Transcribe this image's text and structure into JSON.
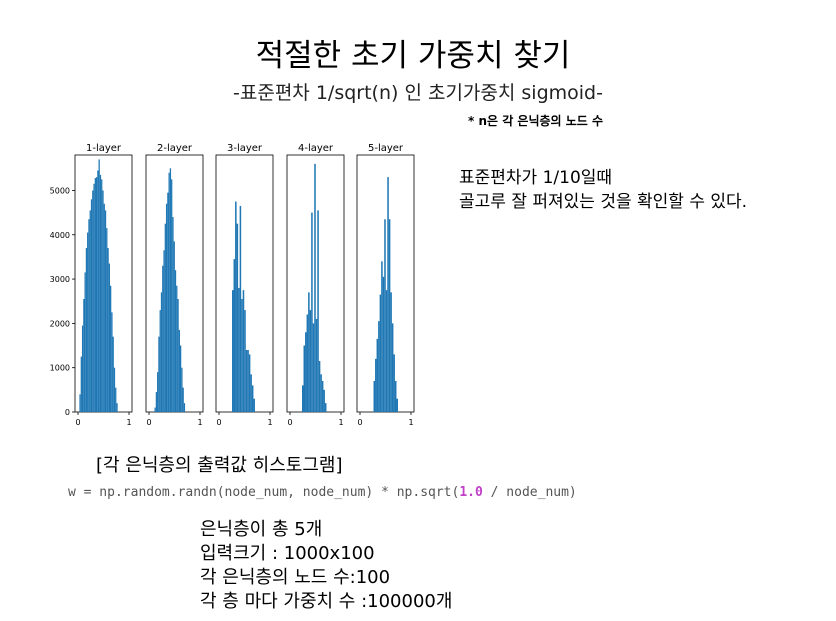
{
  "slide": {
    "title": "적절한 초기 가중치 찾기",
    "subtitle": "-표준편차 1/sqrt(n) 인 초기가중치 sigmoid-",
    "note": "* n은 각 은닉층의 노드 수",
    "right_lines": [
      "표준편차가 1/10일때",
      "골고루 잘 퍼져있는 것을 확인할 수 있다."
    ],
    "caption": "[각 은닉층의 출력값 히스토그램]",
    "code": {
      "pre": "w = np.random.randn(node_num, node_num) * np.sqrt(",
      "num": "1.0",
      "post": " / node_num)"
    },
    "info_lines": [
      "은닉층이 총 5개",
      "입력크기 : 1000x100",
      "각 은닉층의 노드 수:100",
      "각 층 마다 가중치 수 :100000개"
    ]
  },
  "chart_data": {
    "type": "bar",
    "bar_color": "#1f77b4",
    "ylim": [
      0,
      5800
    ],
    "yticks": [
      0,
      1000,
      2000,
      3000,
      4000,
      5000
    ],
    "xlim": [
      0,
      1
    ],
    "xticks": [
      "0",
      "1"
    ],
    "panels": [
      {
        "title": "1-layer",
        "bins": [
          [
            0.04,
            400
          ],
          [
            0.065,
            1250
          ],
          [
            0.09,
            1950
          ],
          [
            0.115,
            2550
          ],
          [
            0.14,
            3150
          ],
          [
            0.165,
            3700
          ],
          [
            0.19,
            4050
          ],
          [
            0.215,
            4350
          ],
          [
            0.24,
            4550
          ],
          [
            0.265,
            4800
          ],
          [
            0.29,
            5000
          ],
          [
            0.315,
            5150
          ],
          [
            0.34,
            5280
          ],
          [
            0.365,
            5300
          ],
          [
            0.39,
            5450
          ],
          [
            0.415,
            5700
          ],
          [
            0.44,
            5350
          ],
          [
            0.465,
            5250
          ],
          [
            0.49,
            5000
          ],
          [
            0.515,
            4700
          ],
          [
            0.54,
            4550
          ],
          [
            0.565,
            4150
          ],
          [
            0.59,
            3700
          ],
          [
            0.615,
            3350
          ],
          [
            0.64,
            2850
          ],
          [
            0.665,
            2250
          ],
          [
            0.69,
            1700
          ],
          [
            0.715,
            1000
          ],
          [
            0.74,
            550
          ],
          [
            0.765,
            200
          ]
        ]
      },
      {
        "title": "2-layer",
        "bins": [
          [
            0.12,
            100
          ],
          [
            0.145,
            450
          ],
          [
            0.17,
            900
          ],
          [
            0.195,
            1700
          ],
          [
            0.22,
            2300
          ],
          [
            0.245,
            2700
          ],
          [
            0.27,
            3300
          ],
          [
            0.295,
            3650
          ],
          [
            0.32,
            4250
          ],
          [
            0.345,
            4700
          ],
          [
            0.37,
            4950
          ],
          [
            0.395,
            5400
          ],
          [
            0.42,
            5500
          ],
          [
            0.445,
            5250
          ],
          [
            0.47,
            4400
          ],
          [
            0.495,
            3850
          ],
          [
            0.52,
            3200
          ],
          [
            0.545,
            2850
          ],
          [
            0.57,
            2550
          ],
          [
            0.595,
            1850
          ],
          [
            0.62,
            1500
          ],
          [
            0.645,
            1000
          ],
          [
            0.67,
            550
          ],
          [
            0.695,
            200
          ]
        ]
      },
      {
        "title": "3-layer",
        "bins": [
          [
            0.27,
            2750
          ],
          [
            0.3,
            3450
          ],
          [
            0.33,
            4750
          ],
          [
            0.36,
            4250
          ],
          [
            0.39,
            2800
          ],
          [
            0.42,
            4650
          ],
          [
            0.45,
            2550
          ],
          [
            0.48,
            2750
          ],
          [
            0.51,
            2300
          ],
          [
            0.54,
            1400
          ],
          [
            0.57,
            1400
          ],
          [
            0.6,
            1300
          ],
          [
            0.63,
            850
          ],
          [
            0.66,
            600
          ],
          [
            0.69,
            300
          ]
        ]
      },
      {
        "title": "4-layer",
        "bins": [
          [
            0.25,
            600
          ],
          [
            0.28,
            1500
          ],
          [
            0.31,
            1800
          ],
          [
            0.34,
            2200
          ],
          [
            0.37,
            2700
          ],
          [
            0.4,
            2300
          ],
          [
            0.43,
            4500
          ],
          [
            0.46,
            2000
          ],
          [
            0.49,
            5600
          ],
          [
            0.52,
            2100
          ],
          [
            0.55,
            4550
          ],
          [
            0.58,
            1150
          ],
          [
            0.61,
            850
          ],
          [
            0.64,
            700
          ],
          [
            0.67,
            500
          ],
          [
            0.7,
            200
          ]
        ]
      },
      {
        "title": "5-layer",
        "bins": [
          [
            0.28,
            700
          ],
          [
            0.31,
            1200
          ],
          [
            0.34,
            1650
          ],
          [
            0.37,
            2050
          ],
          [
            0.4,
            2650
          ],
          [
            0.43,
            3400
          ],
          [
            0.46,
            3050
          ],
          [
            0.49,
            4350
          ],
          [
            0.52,
            2750
          ],
          [
            0.55,
            5300
          ],
          [
            0.58,
            4350
          ],
          [
            0.61,
            2700
          ],
          [
            0.64,
            2000
          ],
          [
            0.67,
            1300
          ],
          [
            0.7,
            700
          ],
          [
            0.73,
            300
          ]
        ]
      }
    ]
  }
}
